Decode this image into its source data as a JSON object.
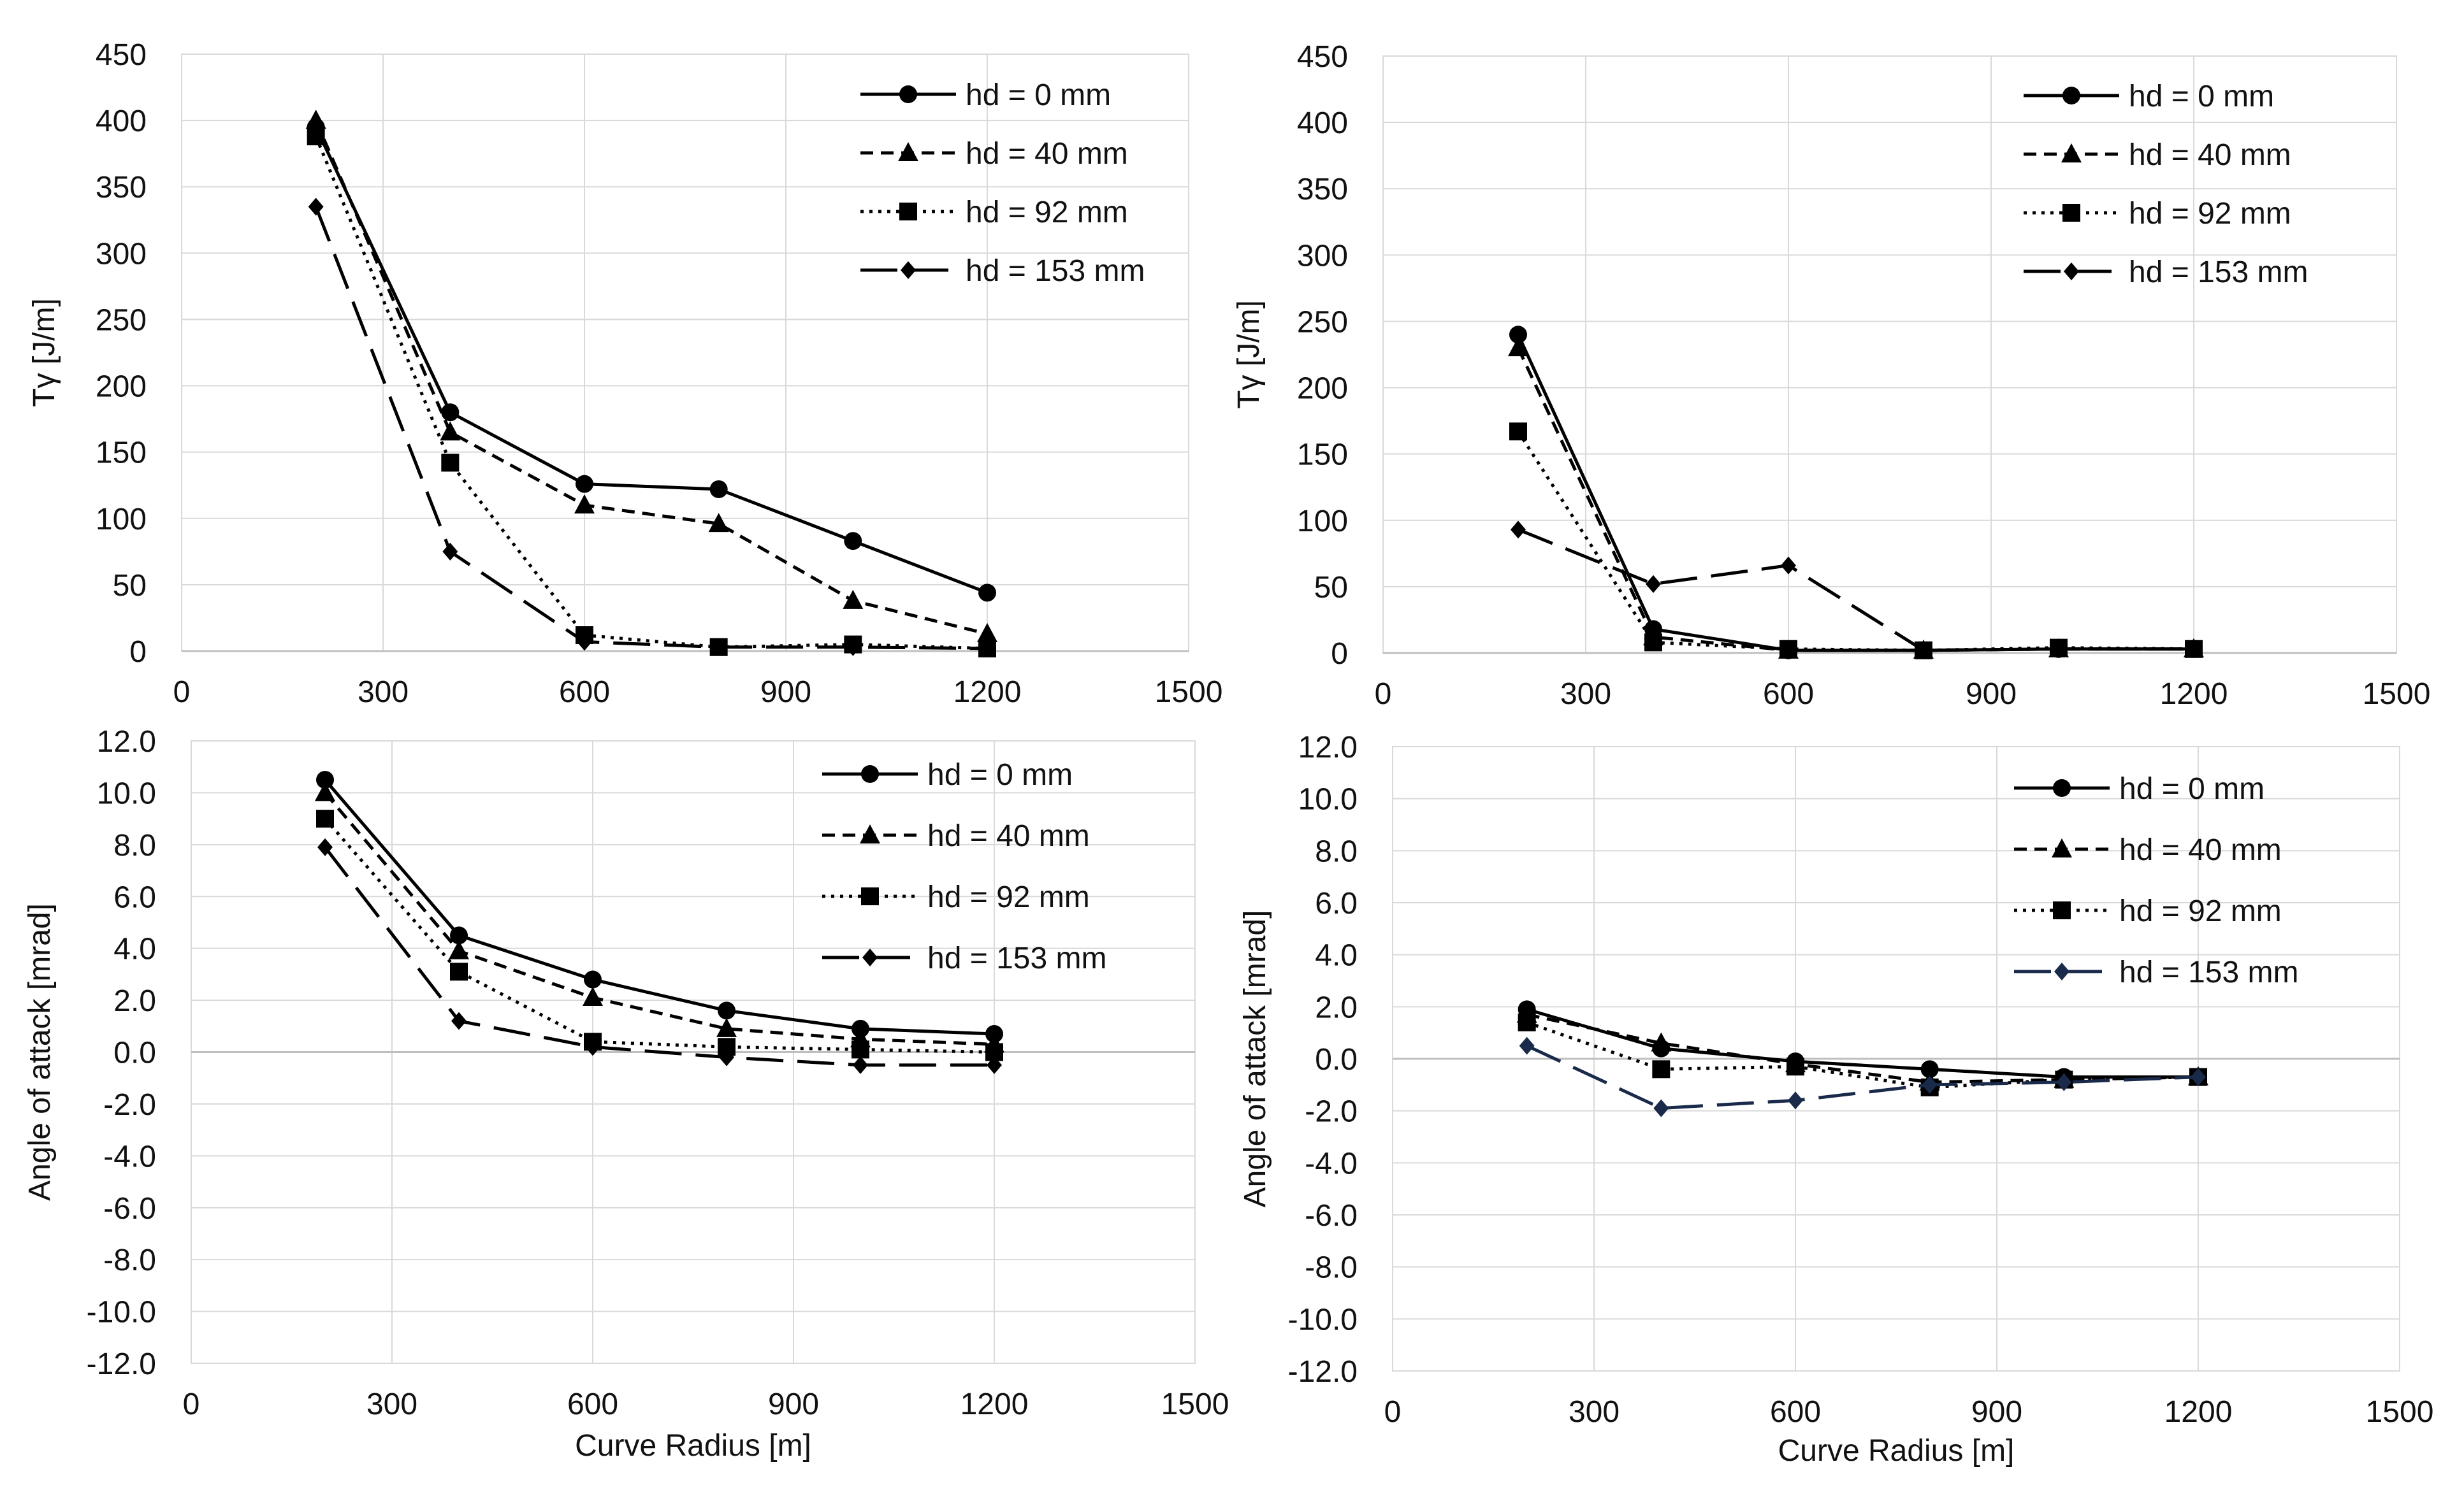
{
  "chart_data": [
    {
      "type": "line",
      "xlabel": "",
      "ylabel": "Tγ  [J/m]",
      "xlim": [
        0,
        1500
      ],
      "ylim": [
        0,
        450
      ],
      "xticks": [
        "0",
        "300",
        "600",
        "900",
        "1200",
        "1500"
      ],
      "yticks": [
        "0",
        "50",
        "100",
        "150",
        "200",
        "250",
        "300",
        "350",
        "400",
        "450"
      ],
      "grid": true,
      "legend": "top-right",
      "x": [
        200,
        400,
        600,
        800,
        1000,
        1200
      ],
      "series": [
        {
          "name": "hd = 0 mm",
          "marker": "circle",
          "dash": "solid",
          "color": "#000000",
          "values": [
            395,
            180,
            126,
            122,
            83,
            44
          ]
        },
        {
          "name": "hd = 40 mm",
          "marker": "triangle",
          "dash": "dashed",
          "color": "#000000",
          "values": [
            400,
            165,
            110,
            96,
            38,
            13
          ]
        },
        {
          "name": "hd = 92 mm",
          "marker": "square",
          "dash": "dotted",
          "color": "#000000",
          "values": [
            388,
            142,
            12,
            3,
            5,
            2
          ]
        },
        {
          "name": "hd = 153 mm",
          "marker": "diamond",
          "dash": "longdash",
          "color": "#000000",
          "values": [
            335,
            75,
            7,
            3,
            3,
            2
          ]
        }
      ]
    },
    {
      "type": "line",
      "xlabel": "",
      "ylabel": "Tγ  [J/m]",
      "xlim": [
        0,
        1500
      ],
      "ylim": [
        0,
        450
      ],
      "xticks": [
        "0",
        "300",
        "600",
        "900",
        "1200",
        "1500"
      ],
      "yticks": [
        "0",
        "50",
        "100",
        "150",
        "200",
        "250",
        "300",
        "350",
        "400",
        "450"
      ],
      "grid": true,
      "legend": "top-right",
      "x": [
        200,
        400,
        600,
        800,
        1000,
        1200
      ],
      "series": [
        {
          "name": "hd = 0 mm",
          "marker": "circle",
          "dash": "solid",
          "color": "#000000",
          "values": [
            240,
            18,
            2,
            2,
            3,
            3
          ]
        },
        {
          "name": "hd = 40 mm",
          "marker": "triangle",
          "dash": "dashed",
          "color": "#000000",
          "values": [
            230,
            12,
            2,
            2,
            3,
            3
          ]
        },
        {
          "name": "hd = 92 mm",
          "marker": "square",
          "dash": "dotted",
          "color": "#000000",
          "values": [
            167,
            8,
            3,
            2,
            4,
            3
          ]
        },
        {
          "name": "hd = 153 mm",
          "marker": "diamond",
          "dash": "longdash",
          "color": "#000000",
          "values": [
            93,
            52,
            66,
            2,
            3,
            3
          ]
        }
      ]
    },
    {
      "type": "line",
      "xlabel": "Curve Radius [m]",
      "ylabel": "Angle of attack [mrad]",
      "xlim": [
        0,
        1500
      ],
      "ylim": [
        -12,
        12
      ],
      "xticks": [
        "0",
        "300",
        "600",
        "900",
        "1200",
        "1500"
      ],
      "yticks": [
        "-12.0",
        "-10.0",
        "-8.0",
        "-6.0",
        "-4.0",
        "-2.0",
        "0.0",
        "2.0",
        "4.0",
        "6.0",
        "8.0",
        "10.0",
        "12.0"
      ],
      "grid": true,
      "legend": "top-right",
      "x": [
        200,
        400,
        600,
        800,
        1000,
        1200
      ],
      "series": [
        {
          "name": "hd = 0 mm",
          "marker": "circle",
          "dash": "solid",
          "color": "#000000",
          "values": [
            10.5,
            4.5,
            2.8,
            1.6,
            0.9,
            0.7
          ]
        },
        {
          "name": "hd = 40 mm",
          "marker": "triangle",
          "dash": "dashed",
          "color": "#000000",
          "values": [
            10.0,
            3.9,
            2.1,
            0.9,
            0.5,
            0.3
          ]
        },
        {
          "name": "hd = 92 mm",
          "marker": "square",
          "dash": "dotted",
          "color": "#000000",
          "values": [
            9.0,
            3.1,
            0.4,
            0.2,
            0.1,
            0.0
          ]
        },
        {
          "name": "hd = 153 mm",
          "marker": "diamond",
          "dash": "longdash",
          "color": "#000000",
          "values": [
            7.9,
            1.2,
            0.2,
            -0.2,
            -0.5,
            -0.5
          ]
        }
      ]
    },
    {
      "type": "line",
      "xlabel": "Curve Radius [m]",
      "ylabel": "Angle of attack [mrad]",
      "xlim": [
        0,
        1500
      ],
      "ylim": [
        -12,
        12
      ],
      "xticks": [
        "0",
        "300",
        "600",
        "900",
        "1200",
        "1500"
      ],
      "yticks": [
        "-12.0",
        "-10.0",
        "-8.0",
        "-6.0",
        "-4.0",
        "-2.0",
        "0.0",
        "2.0",
        "4.0",
        "6.0",
        "8.0",
        "10.0",
        "12.0"
      ],
      "grid": true,
      "legend": "top-right",
      "x": [
        200,
        400,
        600,
        800,
        1000,
        1200
      ],
      "series": [
        {
          "name": "hd = 0 mm",
          "marker": "circle",
          "dash": "solid",
          "color": "#000000",
          "values": [
            1.9,
            0.4,
            -0.1,
            -0.4,
            -0.7,
            -0.7
          ]
        },
        {
          "name": "hd = 40 mm",
          "marker": "triangle",
          "dash": "dashed",
          "color": "#000000",
          "values": [
            1.7,
            0.6,
            -0.2,
            -0.9,
            -0.8,
            -0.7
          ]
        },
        {
          "name": "hd = 92 mm",
          "marker": "square",
          "dash": "dotted",
          "color": "#000000",
          "values": [
            1.4,
            -0.4,
            -0.3,
            -1.1,
            -0.8,
            -0.7
          ]
        },
        {
          "name": "hd = 153 mm",
          "marker": "diamond",
          "dash": "longdash",
          "color": "#1a2a4a",
          "values": [
            0.5,
            -1.9,
            -1.6,
            -1.0,
            -0.9,
            -0.7
          ]
        }
      ]
    }
  ]
}
